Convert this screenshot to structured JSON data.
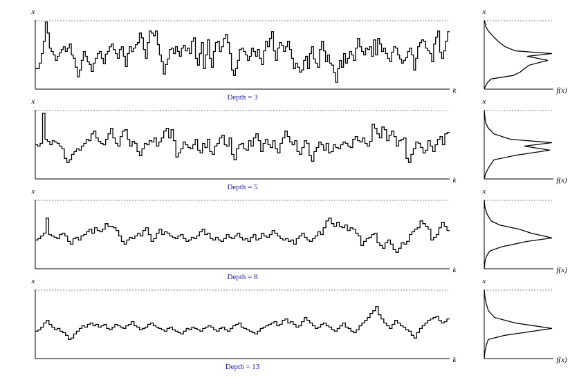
{
  "chart_data": [
    {
      "type": "line",
      "caption": "Depth = 3",
      "depth": 3,
      "xlabel": "k",
      "ylabel": "x",
      "hist_xlabel": "f(x)",
      "hist_ylabel": "x",
      "ylim": [
        0,
        100
      ],
      "values": [
        30,
        30,
        38,
        52,
        70,
        98,
        82,
        60,
        55,
        50,
        42,
        48,
        53,
        58,
        62,
        55,
        60,
        66,
        50,
        45,
        32,
        18,
        28,
        42,
        55,
        48,
        40,
        36,
        26,
        38,
        45,
        52,
        55,
        45,
        37,
        51,
        55,
        62,
        66,
        58,
        52,
        45,
        58,
        62,
        48,
        33,
        52,
        62,
        55,
        60,
        65,
        68,
        82,
        75,
        58,
        45,
        68,
        85,
        82,
        78,
        85,
        65,
        50,
        40,
        22,
        36,
        44,
        58,
        60,
        52,
        62,
        55,
        48,
        60,
        64,
        56,
        60,
        52,
        70,
        75,
        45,
        35,
        52,
        68,
        30,
        50,
        72,
        45,
        32,
        55,
        68,
        70,
        55,
        62,
        74,
        80,
        68,
        52,
        28,
        20,
        30,
        42,
        58,
        60,
        55,
        50,
        42,
        48,
        60,
        55,
        48,
        58,
        45,
        36,
        56,
        70,
        62,
        74,
        84,
        56,
        42,
        60,
        68,
        64,
        55,
        62,
        70,
        58,
        45,
        30,
        38,
        32,
        25,
        28,
        42,
        48,
        30,
        52,
        62,
        44,
        38,
        32,
        58,
        70,
        56,
        40,
        50,
        38,
        35,
        24,
        10,
        30,
        42,
        32,
        52,
        38,
        45,
        55,
        50,
        42,
        60,
        74,
        62,
        55,
        50,
        60,
        58,
        62,
        48,
        72,
        50,
        74,
        66,
        55,
        60,
        52,
        45,
        40,
        54,
        62,
        60,
        50,
        44,
        38,
        42,
        46,
        55,
        60,
        50,
        28,
        45,
        62,
        68,
        72,
        70,
        60,
        56,
        52,
        40,
        66,
        76,
        85,
        54,
        45,
        56,
        70,
        84
      ],
      "histogram": [
        {
          "x": 0,
          "f": 0
        },
        {
          "x": 5,
          "f": 0.02
        },
        {
          "x": 10,
          "f": 0.05
        },
        {
          "x": 15,
          "f": 0.1
        },
        {
          "x": 20,
          "f": 0.42
        },
        {
          "x": 25,
          "f": 0.52
        },
        {
          "x": 30,
          "f": 0.58
        },
        {
          "x": 35,
          "f": 0.65
        },
        {
          "x": 42,
          "f": 0.92
        },
        {
          "x": 48,
          "f": 0.62
        },
        {
          "x": 52,
          "f": 0.98
        },
        {
          "x": 56,
          "f": 0.45
        },
        {
          "x": 62,
          "f": 0.3
        },
        {
          "x": 70,
          "f": 0.2
        },
        {
          "x": 78,
          "f": 0.12
        },
        {
          "x": 85,
          "f": 0.06
        },
        {
          "x": 92,
          "f": 0.02
        },
        {
          "x": 95,
          "f": 0.02
        },
        {
          "x": 100,
          "f": 0
        }
      ]
    },
    {
      "type": "line",
      "caption": "Depth = 5",
      "depth": 5,
      "xlabel": "k",
      "ylabel": "x",
      "hist_xlabel": "f(x)",
      "hist_ylabel": "x",
      "ylim": [
        0,
        100
      ],
      "values": [
        50,
        48,
        52,
        96,
        58,
        55,
        50,
        56,
        54,
        52,
        48,
        44,
        30,
        24,
        28,
        36,
        40,
        44,
        42,
        48,
        52,
        58,
        56,
        66,
        70,
        60,
        55,
        52,
        50,
        58,
        66,
        74,
        60,
        52,
        48,
        62,
        70,
        72,
        58,
        48,
        55,
        52,
        40,
        34,
        44,
        52,
        50,
        56,
        54,
        60,
        48,
        54,
        60,
        70,
        74,
        60,
        72,
        56,
        32,
        38,
        44,
        54,
        50,
        46,
        44,
        50,
        58,
        42,
        38,
        52,
        46,
        58,
        40,
        36,
        48,
        52,
        60,
        64,
        50,
        48,
        60,
        36,
        28,
        44,
        50,
        52,
        44,
        42,
        56,
        48,
        60,
        66,
        56,
        40,
        52,
        58,
        50,
        46,
        56,
        44,
        38,
        52,
        60,
        70,
        62,
        54,
        50,
        56,
        40,
        36,
        46,
        56,
        52,
        34,
        26,
        40,
        46,
        54,
        50,
        42,
        52,
        38,
        40,
        50,
        46,
        44,
        50,
        54,
        52,
        48,
        46,
        58,
        62,
        56,
        54,
        60,
        52,
        48,
        55,
        80,
        74,
        66,
        60,
        76,
        72,
        56,
        64,
        70,
        62,
        48,
        56,
        58,
        60,
        30,
        24,
        36,
        44,
        54,
        52,
        46,
        38,
        42,
        56,
        48,
        40,
        50,
        58,
        62,
        50,
        66,
        68
      ],
      "histogram": [
        {
          "x": 0,
          "f": 0
        },
        {
          "x": 8,
          "f": 0.02
        },
        {
          "x": 16,
          "f": 0.06
        },
        {
          "x": 22,
          "f": 0.1
        },
        {
          "x": 28,
          "f": 0.14
        },
        {
          "x": 35,
          "f": 0.48
        },
        {
          "x": 42,
          "f": 0.95
        },
        {
          "x": 48,
          "f": 0.58
        },
        {
          "x": 53,
          "f": 0.98
        },
        {
          "x": 58,
          "f": 0.38
        },
        {
          "x": 66,
          "f": 0.14
        },
        {
          "x": 74,
          "f": 0.06
        },
        {
          "x": 82,
          "f": 0.02
        },
        {
          "x": 90,
          "f": 0.01
        },
        {
          "x": 100,
          "f": 0
        }
      ]
    },
    {
      "type": "line",
      "caption": "Depth = 8",
      "depth": 8,
      "xlabel": "k",
      "ylabel": "x",
      "hist_xlabel": "f(x)",
      "hist_ylabel": "x",
      "ylim": [
        0,
        100
      ],
      "values": [
        42,
        44,
        48,
        52,
        74,
        50,
        48,
        46,
        44,
        50,
        52,
        48,
        40,
        36,
        44,
        46,
        42,
        48,
        50,
        54,
        58,
        52,
        60,
        56,
        54,
        58,
        66,
        62,
        62,
        60,
        56,
        48,
        40,
        36,
        42,
        46,
        44,
        48,
        52,
        48,
        56,
        60,
        50,
        40,
        44,
        52,
        58,
        50,
        54,
        52,
        48,
        46,
        44,
        48,
        50,
        44,
        40,
        42,
        46,
        44,
        48,
        54,
        58,
        50,
        52,
        44,
        42,
        46,
        42,
        40,
        44,
        50,
        46,
        44,
        48,
        52,
        46,
        42,
        44,
        40,
        46,
        50,
        42,
        44,
        52,
        48,
        46,
        50,
        56,
        52,
        48,
        44,
        42,
        44,
        40,
        42,
        36,
        44,
        48,
        52,
        46,
        42,
        40,
        44,
        48,
        54,
        50,
        60,
        70,
        74,
        66,
        62,
        68,
        62,
        60,
        64,
        56,
        60,
        58,
        52,
        48,
        34,
        40,
        44,
        46,
        50,
        52,
        38,
        34,
        30,
        38,
        42,
        36,
        28,
        24,
        30,
        38,
        36,
        40,
        50,
        54,
        58,
        60,
        70,
        66,
        62,
        58,
        42,
        46,
        50,
        60,
        68,
        62,
        56
      ],
      "histogram": [
        {
          "x": 0,
          "f": 0
        },
        {
          "x": 10,
          "f": 0.01
        },
        {
          "x": 18,
          "f": 0.03
        },
        {
          "x": 26,
          "f": 0.08
        },
        {
          "x": 32,
          "f": 0.25
        },
        {
          "x": 40,
          "f": 0.62
        },
        {
          "x": 45,
          "f": 0.98
        },
        {
          "x": 52,
          "f": 0.68
        },
        {
          "x": 58,
          "f": 0.5
        },
        {
          "x": 64,
          "f": 0.22
        },
        {
          "x": 70,
          "f": 0.1
        },
        {
          "x": 80,
          "f": 0.04
        },
        {
          "x": 90,
          "f": 0.01
        },
        {
          "x": 100,
          "f": 0
        }
      ]
    },
    {
      "type": "line",
      "caption": "Depth = 13",
      "depth": 13,
      "xlabel": "k",
      "ylabel": "x",
      "hist_xlabel": "f(x)",
      "hist_ylabel": "x",
      "ylim": [
        0,
        100
      ],
      "values": [
        40,
        42,
        46,
        52,
        56,
        50,
        46,
        42,
        44,
        40,
        38,
        34,
        28,
        30,
        36,
        40,
        44,
        48,
        46,
        50,
        52,
        48,
        50,
        46,
        48,
        50,
        44,
        42,
        46,
        50,
        48,
        46,
        44,
        48,
        50,
        54,
        48,
        46,
        42,
        44,
        46,
        50,
        52,
        48,
        46,
        44,
        42,
        40,
        44,
        46,
        42,
        40,
        38,
        36,
        40,
        44,
        42,
        46,
        44,
        42,
        40,
        44,
        46,
        48,
        46,
        42,
        40,
        44,
        46,
        42,
        40,
        44,
        48,
        50,
        52,
        46,
        44,
        42,
        40,
        38,
        36,
        40,
        44,
        46,
        48,
        50,
        52,
        54,
        48,
        50,
        56,
        58,
        52,
        54,
        50,
        46,
        48,
        54,
        60,
        56,
        52,
        48,
        44,
        46,
        50,
        52,
        48,
        46,
        42,
        40,
        44,
        48,
        52,
        46,
        44,
        40,
        38,
        42,
        48,
        52,
        56,
        60,
        66,
        70,
        76,
        64,
        58,
        52,
        48,
        44,
        50,
        56,
        52,
        48,
        46,
        42,
        40,
        34,
        30,
        38,
        44,
        48,
        52,
        56,
        58,
        60,
        62,
        56,
        52,
        54,
        58
      ],
      "histogram": [
        {
          "x": 0,
          "f": 0
        },
        {
          "x": 10,
          "f": 0.01
        },
        {
          "x": 20,
          "f": 0.03
        },
        {
          "x": 28,
          "f": 0.06
        },
        {
          "x": 34,
          "f": 0.3
        },
        {
          "x": 44,
          "f": 0.98
        },
        {
          "x": 52,
          "f": 0.45
        },
        {
          "x": 60,
          "f": 0.15
        },
        {
          "x": 70,
          "f": 0.06
        },
        {
          "x": 80,
          "f": 0.03
        },
        {
          "x": 90,
          "f": 0.01
        },
        {
          "x": 100,
          "f": 0
        }
      ]
    }
  ]
}
